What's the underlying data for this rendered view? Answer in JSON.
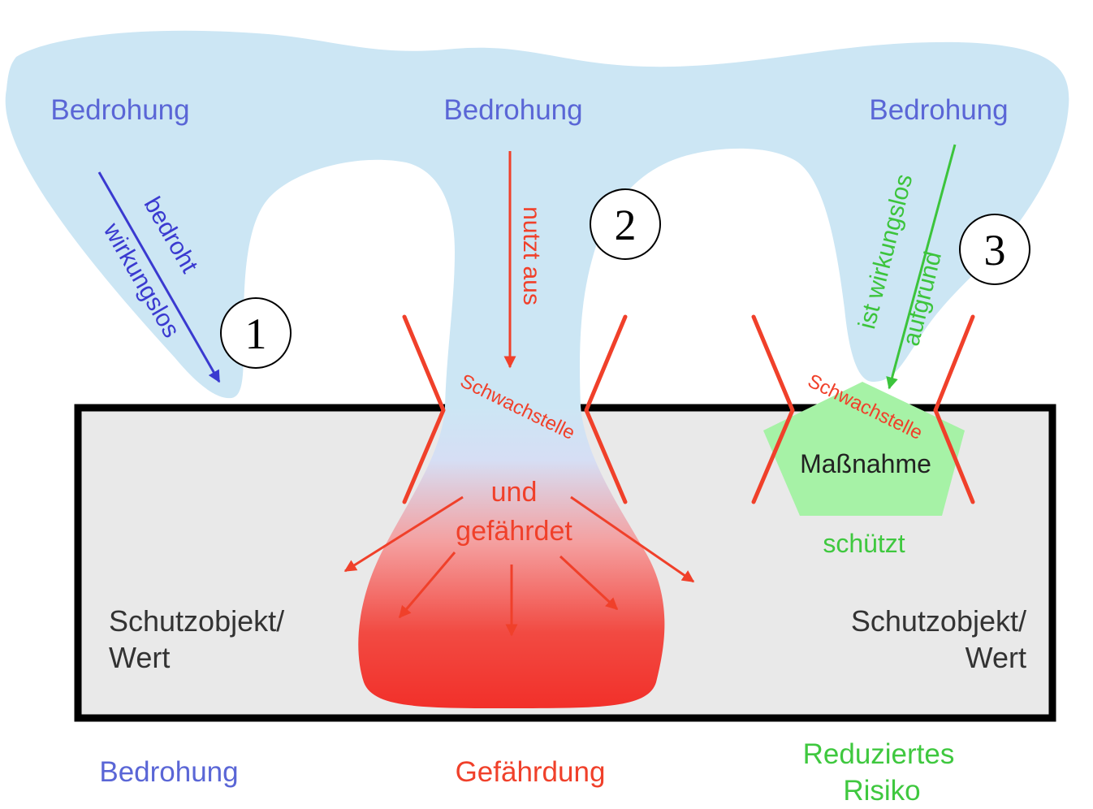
{
  "threats": {
    "left": "Bedrohung",
    "center": "Bedrohung",
    "right": "Bedrohung"
  },
  "arrow_labels": {
    "left_line1": "bedroht",
    "left_line2": "wirkungslos",
    "center": "nutzt aus",
    "right_line1": "ist wirkungslos",
    "right_line2": "aufgrund"
  },
  "markers": [
    "1",
    "2",
    "3"
  ],
  "weakness": {
    "center": "Schwachstelle",
    "right": "Schwachstelle"
  },
  "danger": {
    "line1": "und",
    "line2": "gefährdet"
  },
  "measure": {
    "label": "Maßnahme",
    "action": "schützt"
  },
  "asset": {
    "left_line1": "Schutzobjekt/",
    "left_line2": "Wert",
    "right_line1": "Schutzobjekt/",
    "right_line2": "Wert"
  },
  "legend": {
    "threat": "Bedrohung",
    "danger": "Gefährdung",
    "reduced_line1": "Reduziertes",
    "reduced_line2": "Risiko"
  },
  "colors": {
    "threat_cloud": "#cce6f4",
    "threat_text": "#5a66d6",
    "danger": "#f0402a",
    "measure_fill": "#a6f2a6",
    "measure_text": "#3fc83f",
    "asset_fill": "#e9e9e9",
    "asset_border": "#000000"
  }
}
